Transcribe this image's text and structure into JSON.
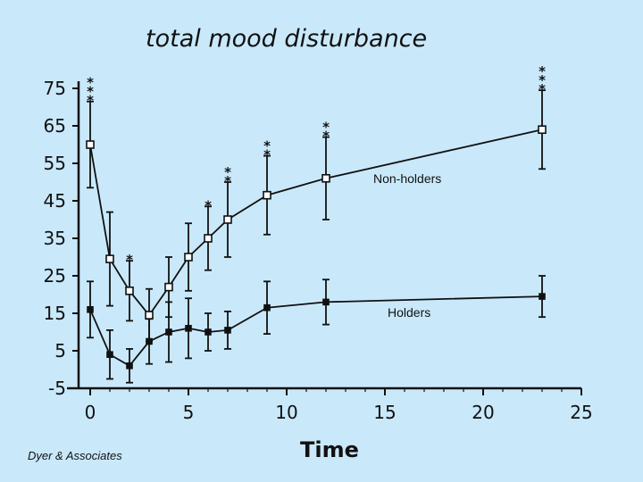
{
  "chart_data": {
    "type": "line",
    "title": "total mood disturbance",
    "xlabel": "Time",
    "ylabel": "",
    "xlim": [
      -1,
      25
    ],
    "ylim": [
      -5,
      75
    ],
    "xticks": [
      0,
      5,
      10,
      15,
      20,
      25
    ],
    "yticks": [
      75,
      65,
      55,
      45,
      35,
      25,
      15,
      5,
      -5
    ],
    "grid": false,
    "series": [
      {
        "name": "Non-holders",
        "marker": "open-square",
        "points": [
          {
            "x": 0,
            "y": 60,
            "err": 11.5,
            "sig": "***"
          },
          {
            "x": 1,
            "y": 29.5,
            "err": 12.5,
            "sig": ""
          },
          {
            "x": 2,
            "y": 21,
            "err": 8,
            "sig": "*"
          },
          {
            "x": 3,
            "y": 14.5,
            "err": 7,
            "sig": ""
          },
          {
            "x": 4,
            "y": 22,
            "err": 8,
            "sig": ""
          },
          {
            "x": 5,
            "y": 30,
            "err": 9,
            "sig": ""
          },
          {
            "x": 6,
            "y": 35,
            "err": 8.5,
            "sig": "*"
          },
          {
            "x": 7,
            "y": 40,
            "err": 10,
            "sig": "**"
          },
          {
            "x": 9,
            "y": 46.5,
            "err": 10.5,
            "sig": "**"
          },
          {
            "x": 12,
            "y": 51,
            "err": 11,
            "sig": "**"
          },
          {
            "x": 23,
            "y": 64,
            "err": 10.5,
            "sig": "***"
          }
        ]
      },
      {
        "name": "Holders",
        "marker": "filled-square",
        "points": [
          {
            "x": 0,
            "y": 16,
            "err": 7.5
          },
          {
            "x": 1,
            "y": 4,
            "err": 6.5
          },
          {
            "x": 2,
            "y": 1,
            "err": 4.5
          },
          {
            "x": 3,
            "y": 7.5,
            "err": 6
          },
          {
            "x": 4,
            "y": 10,
            "err": 8
          },
          {
            "x": 5,
            "y": 11,
            "err": 8
          },
          {
            "x": 6,
            "y": 10,
            "err": 5
          },
          {
            "x": 7,
            "y": 10.5,
            "err": 5
          },
          {
            "x": 9,
            "y": 16.5,
            "err": 7
          },
          {
            "x": 12,
            "y": 18,
            "err": 6
          },
          {
            "x": 23,
            "y": 19.5,
            "err": 5.5
          }
        ]
      }
    ]
  },
  "credit": "Dyer & Associates",
  "colors": {
    "background": "#c9e9fb",
    "ink": "#111111"
  }
}
